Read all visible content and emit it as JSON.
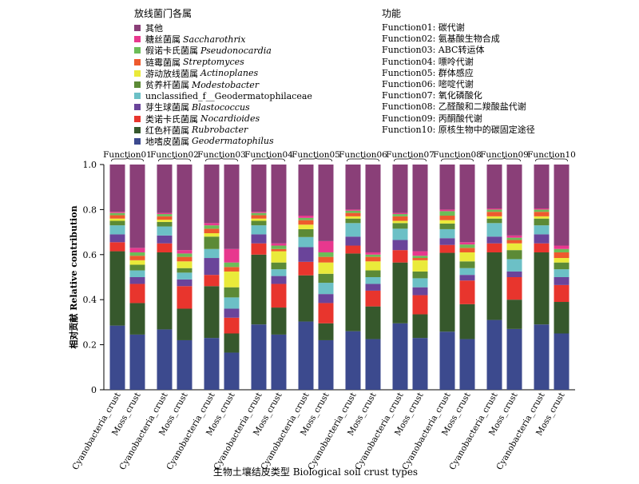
{
  "legend_title": "放线菌门各属",
  "function_title": "功能",
  "legend": [
    {
      "cn": "其他",
      "latin": "",
      "color": "#8a3f78"
    },
    {
      "cn": "糖丝菌属",
      "latin": "Saccharothrix",
      "color": "#e8388e"
    },
    {
      "cn": "假诺卡氏菌属",
      "latin": "Pseudonocardia",
      "color": "#6cbd58"
    },
    {
      "cn": "链霉菌属",
      "latin": "Streptomyces",
      "color": "#ee5a2d"
    },
    {
      "cn": "游动放线菌属",
      "latin": "Actinoplanes",
      "color": "#eaea3a"
    },
    {
      "cn": "贫养杆菌属",
      "latin": "Modestobacter",
      "color": "#5c8a36"
    },
    {
      "cn": "unclassified_f__Geodermatophilaceae",
      "latin": "",
      "color": "#6cc0c6"
    },
    {
      "cn": "芽生球菌属",
      "latin": "Blastococcus",
      "color": "#6a449a"
    },
    {
      "cn": "类诺卡氏菌属",
      "latin": "Nocardioides",
      "color": "#e8352d"
    },
    {
      "cn": "红色杆菌属",
      "latin": "Rubrobacter",
      "color": "#36582c"
    },
    {
      "cn": "地嗜皮菌属",
      "latin": "Geodermatophilus",
      "color": "#3c4a8e"
    }
  ],
  "functions": [
    "Function01: 碳代谢",
    "Function02: 氨基酸生物合成",
    "Function03: ABC转运体",
    "Function04: 嘌呤代谢",
    "Function05: 群体感应",
    "Function06: 嘧啶代谢",
    "Function07: 氧化磷酸化",
    "Function08: 乙醛酸和二羧酸盐代谢",
    "Function09: 丙酮酸代谢",
    "Function10: 原核生物中的碳固定途径"
  ],
  "chart_data": {
    "type": "bar",
    "stacked": true,
    "ylabel": "相对贡献 Relative contribution",
    "xlabel": "生物土壤结皮类型 Biological soil crust types",
    "ylim": [
      0,
      1.0
    ],
    "yticks": [
      "0",
      "0.2",
      "0.4",
      "0.6",
      "0.8",
      "1.0"
    ],
    "groups": [
      "Function01",
      "Function02",
      "Function03",
      "Function04",
      "Function05",
      "Function06",
      "Function07",
      "Function08",
      "Function09",
      "Function10"
    ],
    "categories": [
      "Cyanobacteria_crust",
      "Moss_crust"
    ],
    "series_order_bottom_to_top": [
      "地嗜皮菌属",
      "红色杆菌属",
      "类诺卡氏菌属",
      "芽生球菌属",
      "unclassified_f__Geodermatophilaceae",
      "贫养杆菌属",
      "游动放线菌属",
      "链霉菌属",
      "假诺卡氏菌属",
      "糖丝菌属",
      "其他"
    ],
    "bars": [
      {
        "group": "Function01",
        "category": "Cyanobacteria_crust",
        "values": [
          0.285,
          0.33,
          0.04,
          0.035,
          0.04,
          0.02,
          0.01,
          0.015,
          0.01,
          0.005,
          0.21
        ]
      },
      {
        "group": "Function01",
        "category": "Moss_crust",
        "values": [
          0.245,
          0.14,
          0.085,
          0.03,
          0.03,
          0.025,
          0.02,
          0.02,
          0.015,
          0.02,
          0.37
        ]
      },
      {
        "group": "Function02",
        "category": "Cyanobacteria_crust",
        "values": [
          0.268,
          0.342,
          0.04,
          0.035,
          0.04,
          0.02,
          0.01,
          0.015,
          0.01,
          0.005,
          0.215
        ]
      },
      {
        "group": "Function02",
        "category": "Moss_crust",
        "values": [
          0.22,
          0.14,
          0.1,
          0.03,
          0.03,
          0.02,
          0.03,
          0.02,
          0.015,
          0.015,
          0.38
        ]
      },
      {
        "group": "Function03",
        "category": "Cyanobacteria_crust",
        "values": [
          0.23,
          0.23,
          0.05,
          0.075,
          0.04,
          0.055,
          0.015,
          0.02,
          0.015,
          0.01,
          0.26
        ]
      },
      {
        "group": "Function03",
        "category": "Moss_crust",
        "values": [
          0.165,
          0.085,
          0.07,
          0.04,
          0.05,
          0.045,
          0.07,
          0.02,
          0.02,
          0.06,
          0.375
        ]
      },
      {
        "group": "Function04",
        "category": "Cyanobacteria_crust",
        "values": [
          0.29,
          0.31,
          0.05,
          0.04,
          0.04,
          0.02,
          0.01,
          0.015,
          0.01,
          0.005,
          0.21
        ]
      },
      {
        "group": "Function04",
        "category": "Moss_crust",
        "values": [
          0.245,
          0.12,
          0.105,
          0.035,
          0.03,
          0.03,
          0.05,
          0.01,
          0.015,
          0.01,
          0.35
        ]
      },
      {
        "group": "Function05",
        "category": "Cyanobacteria_crust",
        "values": [
          0.303,
          0.205,
          0.06,
          0.065,
          0.045,
          0.035,
          0.02,
          0.02,
          0.01,
          0.01,
          0.227
        ]
      },
      {
        "group": "Function05",
        "category": "Moss_crust",
        "values": [
          0.22,
          0.075,
          0.09,
          0.04,
          0.05,
          0.04,
          0.05,
          0.025,
          0.02,
          0.05,
          0.34
        ]
      },
      {
        "group": "Function06",
        "category": "Cyanobacteria_crust",
        "values": [
          0.26,
          0.345,
          0.035,
          0.04,
          0.06,
          0.02,
          0.01,
          0.015,
          0.01,
          0.005,
          0.2
        ]
      },
      {
        "group": "Function06",
        "category": "Moss_crust",
        "values": [
          0.225,
          0.145,
          0.07,
          0.03,
          0.03,
          0.03,
          0.04,
          0.02,
          0.01,
          0.01,
          0.39
        ]
      },
      {
        "group": "Function07",
        "category": "Cyanobacteria_crust",
        "values": [
          0.295,
          0.27,
          0.055,
          0.045,
          0.05,
          0.025,
          0.01,
          0.02,
          0.01,
          0.005,
          0.215
        ]
      },
      {
        "group": "Function07",
        "category": "Moss_crust",
        "values": [
          0.23,
          0.105,
          0.085,
          0.035,
          0.04,
          0.03,
          0.05,
          0.01,
          0.01,
          0.02,
          0.385
        ]
      },
      {
        "group": "Function08",
        "category": "Cyanobacteria_crust",
        "values": [
          0.258,
          0.35,
          0.035,
          0.03,
          0.04,
          0.025,
          0.015,
          0.02,
          0.02,
          0.007,
          0.2
        ]
      },
      {
        "group": "Function08",
        "category": "Moss_crust",
        "values": [
          0.225,
          0.155,
          0.105,
          0.025,
          0.03,
          0.03,
          0.04,
          0.02,
          0.015,
          0.01,
          0.345
        ]
      },
      {
        "group": "Function09",
        "category": "Cyanobacteria_crust",
        "values": [
          0.31,
          0.3,
          0.04,
          0.03,
          0.06,
          0.02,
          0.01,
          0.02,
          0.01,
          0.005,
          0.195
        ]
      },
      {
        "group": "Function09",
        "category": "Moss_crust",
        "values": [
          0.27,
          0.13,
          0.1,
          0.025,
          0.055,
          0.04,
          0.03,
          0.015,
          0.01,
          0.01,
          0.315
        ]
      },
      {
        "group": "Function10",
        "category": "Cyanobacteria_crust",
        "values": [
          0.29,
          0.32,
          0.04,
          0.04,
          0.04,
          0.03,
          0.01,
          0.02,
          0.01,
          0.005,
          0.195
        ]
      },
      {
        "group": "Function10",
        "category": "Moss_crust",
        "values": [
          0.25,
          0.14,
          0.075,
          0.035,
          0.035,
          0.03,
          0.02,
          0.025,
          0.015,
          0.015,
          0.36
        ]
      }
    ]
  }
}
